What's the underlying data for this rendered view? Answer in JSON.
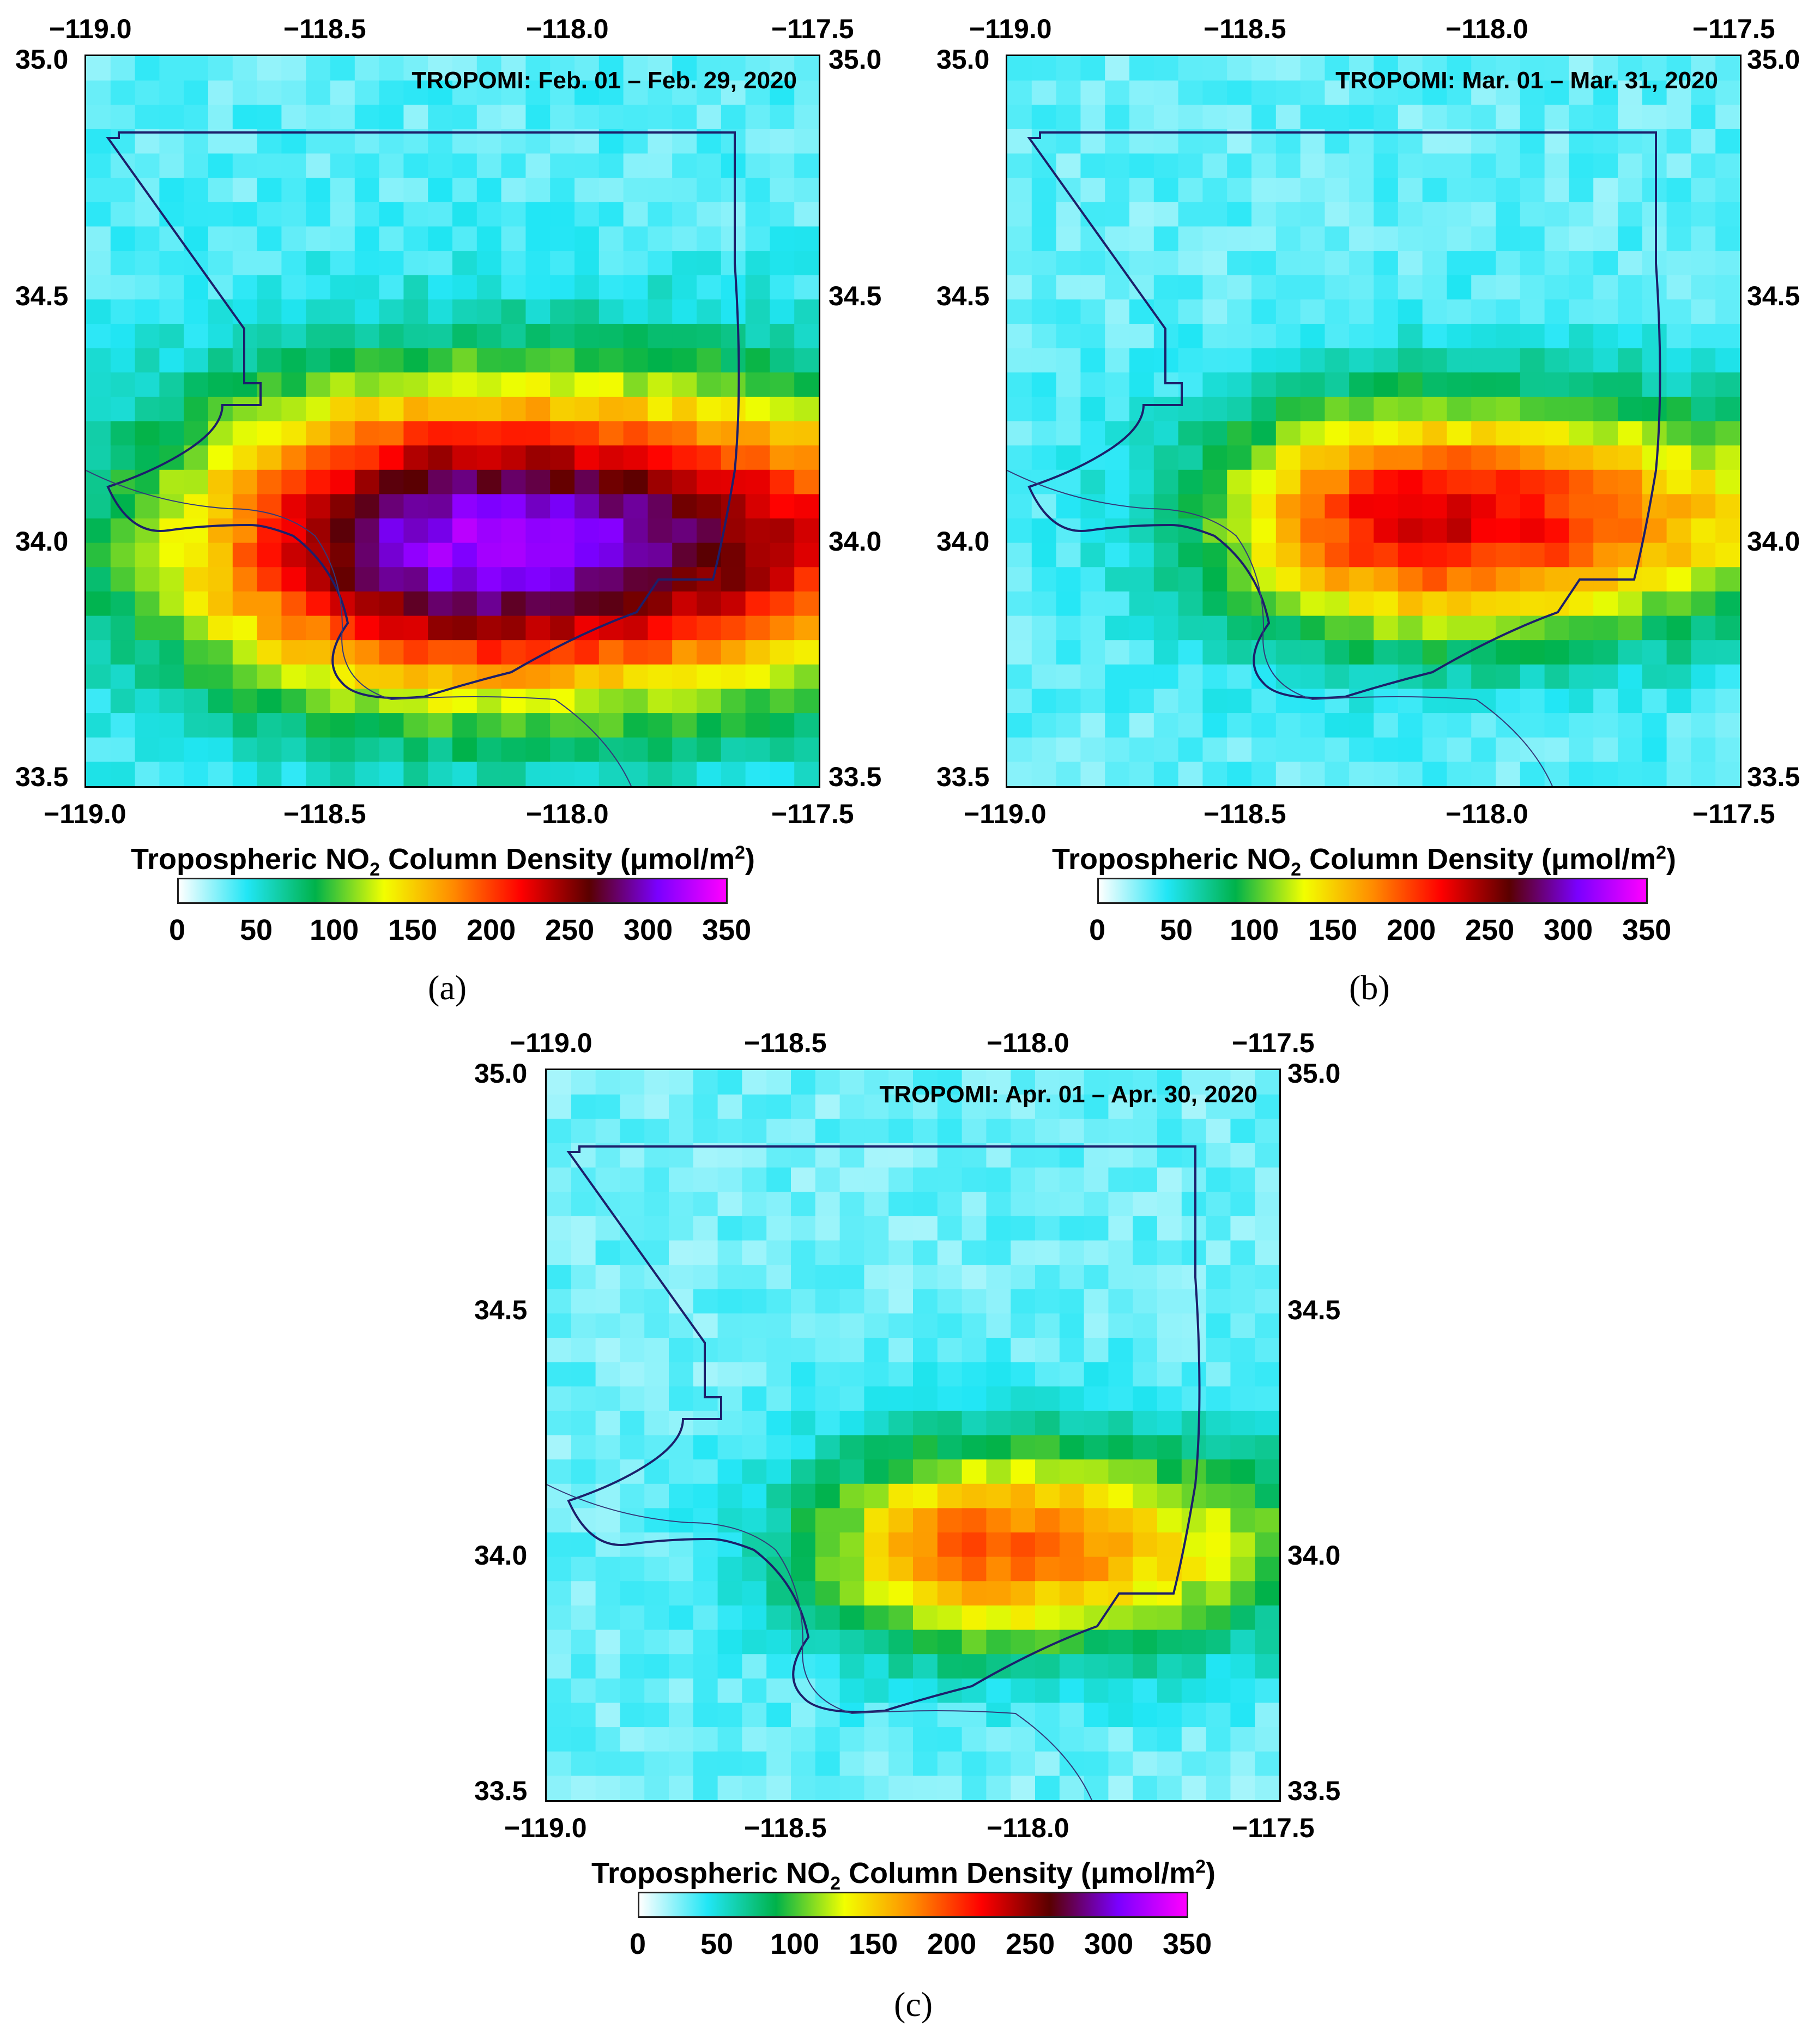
{
  "chart_data": [
    {
      "type": "heatmap",
      "panel_label": "(a)",
      "title": "TROPOMI: Feb. 01 – Feb. 29, 2020",
      "x_ticks": [
        "−119.0",
        "−118.5",
        "−118.0",
        "−117.5"
      ],
      "y_ticks": [
        "35.0",
        "34.5",
        "34.0",
        "33.5"
      ],
      "xlim": [
        -119.0,
        -117.5
      ],
      "ylim": [
        33.5,
        35.0
      ],
      "colorbar_label": "Tropospheric NO2 Column Density (μmol/m2)",
      "colorbar_ticks": [
        "0",
        "50",
        "100",
        "150",
        "200",
        "250",
        "300",
        "350"
      ],
      "vmin": 0,
      "vmax": 350,
      "hotspot": {
        "lon": -118.2,
        "lat": 34.0,
        "peak_value": 320,
        "spread_lon": 0.42,
        "spread_lat": 0.22,
        "east_extension": 0.55
      },
      "background_value": 32
    },
    {
      "type": "heatmap",
      "panel_label": "(b)",
      "title": "TROPOMI: Mar. 01 – Mar. 31, 2020",
      "x_ticks": [
        "−119.0",
        "−118.5",
        "−118.0",
        "−117.5"
      ],
      "y_ticks": [
        "35.0",
        "34.5",
        "34.0",
        "33.5"
      ],
      "xlim": [
        -119.0,
        -117.5
      ],
      "ylim": [
        33.5,
        35.0
      ],
      "colorbar_label": "Tropospheric NO2 Column Density (μmol/m2)",
      "colorbar_ticks": [
        "0",
        "50",
        "100",
        "150",
        "200",
        "250",
        "300",
        "350"
      ],
      "vmin": 0,
      "vmax": 350,
      "hotspot": {
        "lon": -118.15,
        "lat": 34.05,
        "peak_value": 230,
        "spread_lon": 0.3,
        "spread_lat": 0.17,
        "east_extension": 0.45
      },
      "background_value": 30
    },
    {
      "type": "heatmap",
      "panel_label": "(c)",
      "title": "TROPOMI: Apr. 01 – Apr. 30, 2020",
      "x_ticks": [
        "−119.0",
        "−118.5",
        "−118.0",
        "−117.5"
      ],
      "y_ticks": [
        "35.0",
        "34.5",
        "34.0",
        "33.5"
      ],
      "xlim": [
        -119.0,
        -117.5
      ],
      "ylim": [
        33.5,
        35.0
      ],
      "colorbar_label": "Tropospheric NO2 Column Density (μmol/m2)",
      "colorbar_ticks": [
        "0",
        "50",
        "100",
        "150",
        "200",
        "250",
        "300",
        "350"
      ],
      "vmin": 0,
      "vmax": 350,
      "hotspot": {
        "lon": -118.1,
        "lat": 34.02,
        "peak_value": 190,
        "spread_lon": 0.26,
        "spread_lat": 0.15,
        "east_extension": 0.35
      },
      "background_value": 28
    }
  ],
  "colorbar": {
    "title_main": "Tropospheric NO",
    "title_sub": "2",
    "title_rest": " Column Density (μmol/m",
    "title_sup": "2",
    "title_end": ")",
    "stops": [
      "#ffffff",
      "#21e6f5",
      "#00b24a",
      "#f2ff00",
      "#ff8c00",
      "#ff0000",
      "#5a0000",
      "#7a00ff",
      "#ff00ff"
    ]
  }
}
